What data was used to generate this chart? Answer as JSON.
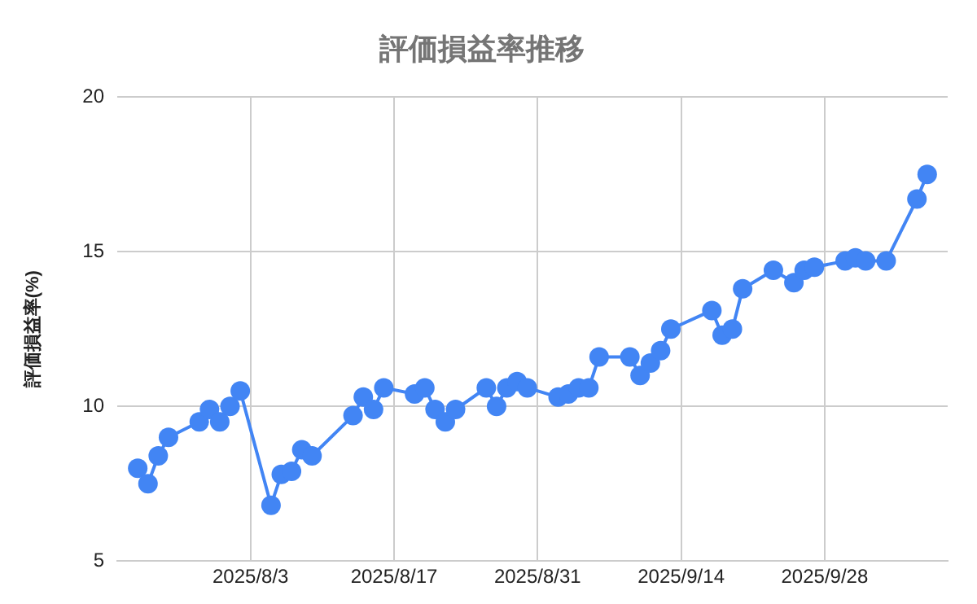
{
  "chart_data": {
    "type": "line",
    "title": "評価損益率推移",
    "ylabel": "評価損益率(%)",
    "x": [
      "2025-07-23",
      "2025-07-24",
      "2025-07-25",
      "2025-07-26",
      "2025-07-29",
      "2025-07-30",
      "2025-07-31",
      "2025-08-01",
      "2025-08-02",
      "2025-08-05",
      "2025-08-06",
      "2025-08-07",
      "2025-08-08",
      "2025-08-09",
      "2025-08-13",
      "2025-08-14",
      "2025-08-15",
      "2025-08-16",
      "2025-08-19",
      "2025-08-20",
      "2025-08-21",
      "2025-08-22",
      "2025-08-23",
      "2025-08-26",
      "2025-08-27",
      "2025-08-28",
      "2025-08-29",
      "2025-08-30",
      "2025-09-02",
      "2025-09-03",
      "2025-09-04",
      "2025-09-05",
      "2025-09-06",
      "2025-09-09",
      "2025-09-10",
      "2025-09-11",
      "2025-09-12",
      "2025-09-13",
      "2025-09-17",
      "2025-09-18",
      "2025-09-19",
      "2025-09-20",
      "2025-09-23",
      "2025-09-25",
      "2025-09-26",
      "2025-09-27",
      "2025-09-30",
      "2025-10-01",
      "2025-10-02",
      "2025-10-04",
      "2025-10-07",
      "2025-10-08"
    ],
    "series": [
      {
        "color": "#4285f4",
        "values": [
          8.0,
          7.5,
          8.4,
          9.0,
          9.5,
          9.9,
          9.5,
          10.0,
          10.5,
          6.8,
          7.8,
          7.9,
          8.6,
          8.4,
          9.7,
          10.3,
          9.9,
          10.6,
          10.4,
          10.6,
          9.9,
          9.5,
          9.9,
          10.6,
          10.0,
          10.6,
          10.8,
          10.6,
          10.3,
          10.4,
          10.6,
          10.6,
          11.6,
          11.6,
          11.0,
          11.4,
          11.8,
          12.5,
          13.1,
          12.3,
          12.5,
          13.8,
          14.4,
          14.0,
          14.4,
          14.5,
          14.7,
          14.8,
          14.7,
          14.7,
          16.7,
          17.5
        ]
      }
    ],
    "xlim": [
      "2025-07-21",
      "2025-10-10"
    ],
    "xticks": [
      {
        "value": "2025-08-03",
        "label": "2025/8/3"
      },
      {
        "value": "2025-08-17",
        "label": "2025/8/17"
      },
      {
        "value": "2025-08-31",
        "label": "2025/8/31"
      },
      {
        "value": "2025-09-14",
        "label": "2025/9/14"
      },
      {
        "value": "2025-09-28",
        "label": "2025/9/28"
      }
    ],
    "ylim": [
      5,
      20
    ],
    "yticks": [
      5,
      10,
      15,
      20
    ],
    "grid": true,
    "legend": false,
    "marker": "circle",
    "line_style": "solid"
  }
}
